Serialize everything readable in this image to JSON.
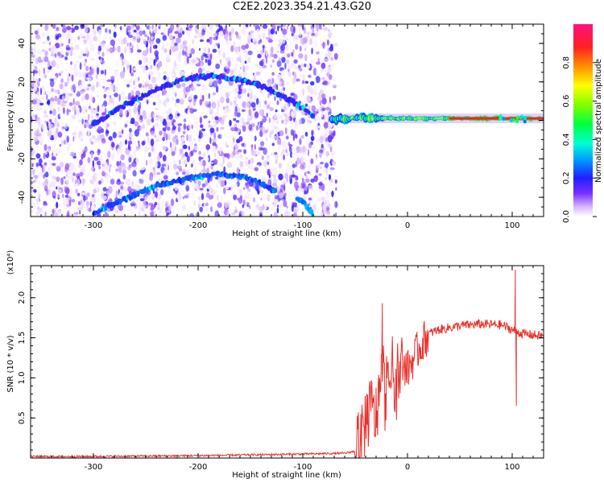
{
  "title": "C2E2.2023.354.21.43.G20",
  "chart_data": [
    {
      "type": "heatmap",
      "xlabel": "Height of straight line (km)",
      "ylabel": "Frequency (Hz)",
      "xlim": [
        -360,
        130
      ],
      "ylim": [
        -50,
        50
      ],
      "xticks": [
        -300,
        -200,
        -100,
        0,
        100
      ],
      "yticks": [
        -40,
        -20,
        0,
        20,
        40
      ],
      "colorbar": {
        "label": "Normalized spectral amplitude",
        "range": [
          0,
          1
        ],
        "ticks": [
          "0.0",
          "0.2",
          "0.4",
          "0.6",
          "0.8"
        ]
      },
      "features": [
        {
          "name": "upper-arc",
          "x": [
            -300,
            -270,
            -240,
            -210,
            -185,
            -160,
            -135,
            -110,
            -90
          ],
          "y": [
            -2,
            8,
            16,
            22,
            23,
            21,
            17,
            10,
            2
          ],
          "amplitude": 0.15
        },
        {
          "name": "lower-arc",
          "x": [
            -300,
            -270,
            -240,
            -210,
            -180,
            -150,
            -125
          ],
          "y": [
            -48,
            -41,
            -34,
            -30,
            -28,
            -30,
            -37
          ],
          "amplitude": 0.2
        },
        {
          "name": "right-tail",
          "x": [
            -105,
            -95,
            -90
          ],
          "y": [
            -40,
            -45,
            -50
          ],
          "amplitude": 0.25
        },
        {
          "name": "carrier-line",
          "x_start": -72,
          "x_end": 130,
          "y": 1,
          "amplitude": 0.9
        }
      ]
    },
    {
      "type": "line",
      "xlabel": "Height of straight line (km)",
      "ylabel": "SNR (10 * v/v)",
      "yunit_label": "(x10⁴)",
      "xlim": [
        -360,
        130
      ],
      "ylim": [
        0,
        2.4
      ],
      "xticks": [
        -300,
        -200,
        -100,
        0,
        100
      ],
      "yticks": [
        "0.5",
        "1.0",
        "1.5",
        "2.0"
      ],
      "series": [
        {
          "name": "SNR",
          "color": "#e8302a",
          "x": [
            -360,
            -300,
            -200,
            -100,
            -60,
            -45,
            -40,
            -35,
            -30,
            -25,
            -20,
            -15,
            -10,
            -5,
            0,
            10,
            20,
            30,
            50,
            70,
            90,
            100,
            110,
            130
          ],
          "y": [
            0.02,
            0.02,
            0.03,
            0.05,
            0.06,
            0.1,
            0.5,
            0.6,
            0.5,
            1.0,
            0.7,
            1.1,
            0.9,
            1.2,
            1.1,
            1.35,
            1.55,
            1.6,
            1.65,
            1.67,
            1.66,
            1.6,
            1.55,
            1.52
          ]
        }
      ],
      "spikes": [
        {
          "x": -24,
          "y": 1.93
        },
        {
          "x": 103,
          "y": 2.35
        },
        {
          "x": 104,
          "y": 0.65
        }
      ]
    }
  ]
}
